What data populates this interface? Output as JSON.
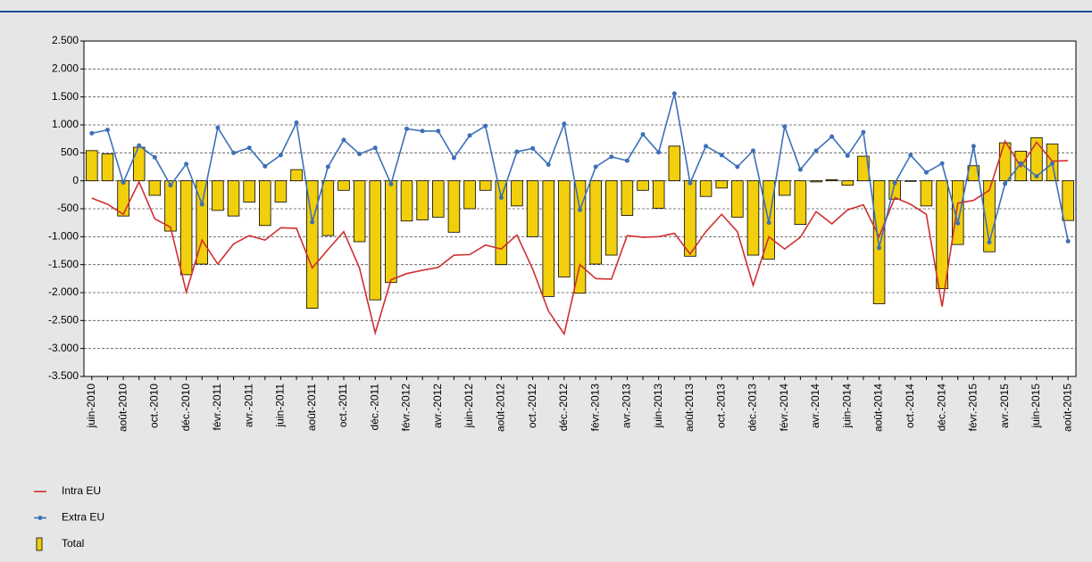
{
  "chart_data": {
    "type": "combo",
    "categories": [
      "juin-2010",
      null,
      "août-2010",
      null,
      "oct.-2010",
      null,
      "déc.-2010",
      null,
      "févr.-2011",
      null,
      "avr.-2011",
      null,
      "juin-2011",
      null,
      "août-2011",
      null,
      "oct.-2011",
      null,
      "déc.-2011",
      null,
      "févr.-2012",
      null,
      "avr.-2012",
      null,
      "juin-2012",
      null,
      "août-2012",
      null,
      "oct.-2012",
      null,
      "déc.-2012",
      null,
      "févr.-2013",
      null,
      "avr.-2013",
      null,
      "juin-2013",
      null,
      "août-2013",
      null,
      "oct.-2013",
      null,
      "déc.-2013",
      null,
      "févr.-2014",
      null,
      "avr.-2014",
      null,
      "juin-2014",
      null,
      "août-2014",
      null,
      "oct.-2014",
      null,
      "déc.-2014",
      null,
      "févr.-2015",
      null,
      "avr.-2015",
      null,
      "juin-2015",
      null,
      "août-2015"
    ],
    "series": [
      {
        "name": "Intra EU",
        "type": "line",
        "color": "#d0302f",
        "markers": false,
        "values": [
          -310,
          -420,
          -600,
          -20,
          -680,
          -830,
          -1990,
          -1060,
          -1490,
          -1130,
          -980,
          -1060,
          -840,
          -850,
          -1560,
          -1230,
          -910,
          -1560,
          -2720,
          -1770,
          -1660,
          -1600,
          -1550,
          -1330,
          -1320,
          -1150,
          -1220,
          -970,
          -1580,
          -2330,
          -2740,
          -1500,
          -1750,
          -1760,
          -980,
          -1010,
          -1000,
          -940,
          -1310,
          -910,
          -600,
          -910,
          -1870,
          -1000,
          -1220,
          -1010,
          -550,
          -770,
          -520,
          -430,
          -1000,
          -300,
          -420,
          -600,
          -2250,
          -400,
          -350,
          -170,
          710,
          250,
          690,
          350,
          360
        ]
      },
      {
        "name": "Extra EU",
        "type": "line",
        "color": "#3d70b8",
        "markers": true,
        "values": [
          850,
          910,
          -30,
          630,
          420,
          -80,
          300,
          -420,
          950,
          500,
          590,
          260,
          460,
          1040,
          -740,
          250,
          730,
          480,
          590,
          -60,
          930,
          890,
          890,
          410,
          810,
          980,
          -300,
          520,
          580,
          290,
          1020,
          -520,
          250,
          430,
          360,
          830,
          510,
          1560,
          -40,
          620,
          460,
          250,
          540,
          -750,
          970,
          200,
          540,
          790,
          450,
          870,
          -1200,
          -40,
          460,
          150,
          310,
          -760,
          620,
          -1100,
          -50,
          310,
          80,
          310,
          -1080
        ]
      },
      {
        "name": "Total",
        "type": "bar",
        "color": "#f2cf0c",
        "values": [
          540,
          480,
          -630,
          600,
          -260,
          -900,
          -1680,
          -1490,
          -530,
          -630,
          -380,
          -800,
          -380,
          200,
          -2280,
          -980,
          -170,
          -1090,
          -2130,
          -1820,
          -720,
          -700,
          -650,
          -920,
          -500,
          -170,
          -1500,
          -450,
          -1000,
          -2070,
          -1720,
          -2010,
          -1490,
          -1330,
          -620,
          -170,
          -490,
          620,
          -1350,
          -280,
          -130,
          -650,
          -1330,
          -1400,
          -260,
          -780,
          -20,
          20,
          -80,
          440,
          -2200,
          -330,
          -10,
          -450,
          -1930,
          -1140,
          270,
          -1270,
          680,
          530,
          770,
          660,
          -710
        ]
      }
    ],
    "ylim": [
      -3500,
      2500
    ],
    "yticks": [
      {
        "value": -3500,
        "label": "-3.500"
      },
      {
        "value": -3000,
        "label": "-3.000"
      },
      {
        "value": -2500,
        "label": "-2.500"
      },
      {
        "value": -2000,
        "label": "-2.000"
      },
      {
        "value": -1500,
        "label": "-1.500"
      },
      {
        "value": -1000,
        "label": "-1.000"
      },
      {
        "value": -500,
        "label": "-500"
      },
      0,
      500,
      {
        "value": 1000,
        "label": "1.000"
      },
      {
        "value": 1500,
        "label": "1.500"
      },
      {
        "value": 2000,
        "label": "2.000"
      },
      {
        "value": 2500,
        "label": "2.500"
      }
    ],
    "grid": true
  }
}
